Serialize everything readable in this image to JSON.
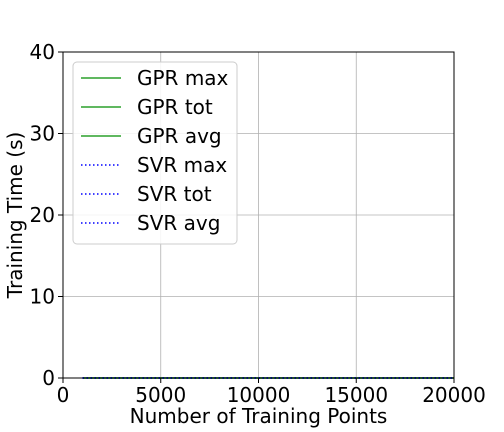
{
  "chart_data": {
    "type": "line",
    "title": "",
    "xlabel": "Number of Training Points",
    "ylabel": "Training Time (s)",
    "xlim": [
      0,
      20000
    ],
    "ylim": [
      0,
      40
    ],
    "xticks": [
      0,
      5000,
      10000,
      15000,
      20000
    ],
    "yticks": [
      0,
      10,
      20,
      30,
      40
    ],
    "grid": true,
    "legend_position": "top-left",
    "x": [
      1000,
      5000,
      10000,
      15000,
      20000
    ],
    "series": [
      {
        "name": "GPR max",
        "values": [
          0,
          0,
          0,
          0,
          0
        ],
        "color": "#2ca02c",
        "style": "solid"
      },
      {
        "name": "GPR tot",
        "values": [
          0,
          0,
          0,
          0,
          0
        ],
        "color": "#2ca02c",
        "style": "solid"
      },
      {
        "name": "GPR avg",
        "values": [
          0,
          0,
          0,
          0,
          0
        ],
        "color": "#2ca02c",
        "style": "solid"
      },
      {
        "name": "SVR max",
        "values": [
          0,
          0,
          0,
          0,
          0
        ],
        "color": "#0000ff",
        "style": "dotted"
      },
      {
        "name": "SVR tot",
        "values": [
          0,
          0,
          0,
          0,
          0
        ],
        "color": "#0000ff",
        "style": "dotted"
      },
      {
        "name": "SVR avg",
        "values": [
          0,
          0,
          0,
          0,
          0
        ],
        "color": "#0000ff",
        "style": "dotted"
      }
    ]
  }
}
